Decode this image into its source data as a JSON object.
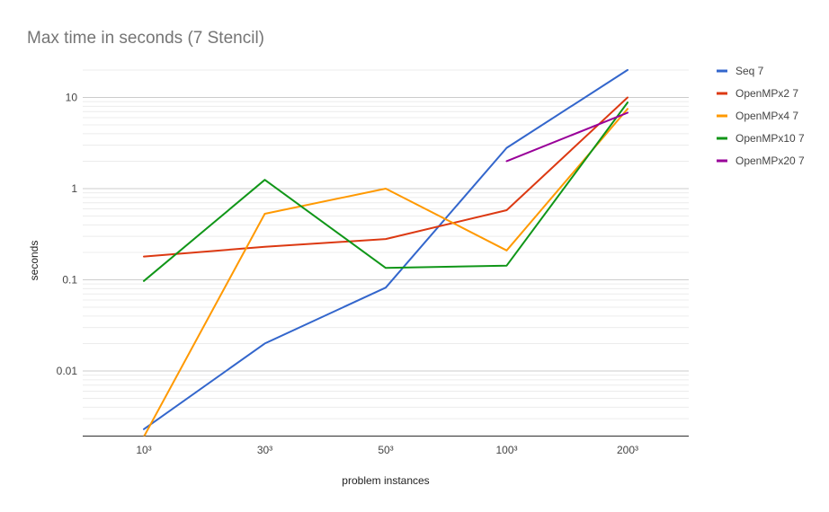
{
  "chart_data": {
    "type": "line",
    "title": "Max time in seconds (7 Stencil)",
    "xlabel": "problem instances",
    "ylabel": "seconds",
    "y_scale": "log",
    "ylim": [
      0.0015,
      20
    ],
    "y_ticks": [
      0.01,
      0.1,
      1,
      10
    ],
    "y_tick_labels": [
      "0.01",
      "0.1",
      "1",
      "10"
    ],
    "grid": true,
    "legend_position": "right",
    "categories": [
      "10³",
      "30³",
      "50³",
      "100³",
      "200³"
    ],
    "series": [
      {
        "name": "Seq 7",
        "color": "#3366cc",
        "values": [
          0.0023,
          0.02,
          0.082,
          2.8,
          20
        ]
      },
      {
        "name": "OpenMPx2 7",
        "color": "#dc3912",
        "values": [
          0.18,
          0.23,
          0.28,
          0.58,
          10
        ]
      },
      {
        "name": "OpenMPx4 7",
        "color": "#ff9900",
        "values": [
          0.0019,
          0.53,
          1.0,
          0.21,
          7.5
        ]
      },
      {
        "name": "OpenMPx10 7",
        "color": "#109618",
        "values": [
          0.097,
          1.25,
          0.135,
          0.143,
          8.8
        ]
      },
      {
        "name": "OpenMPx20 7",
        "color": "#990099",
        "values": [
          null,
          null,
          null,
          2.0,
          6.8
        ]
      }
    ]
  }
}
